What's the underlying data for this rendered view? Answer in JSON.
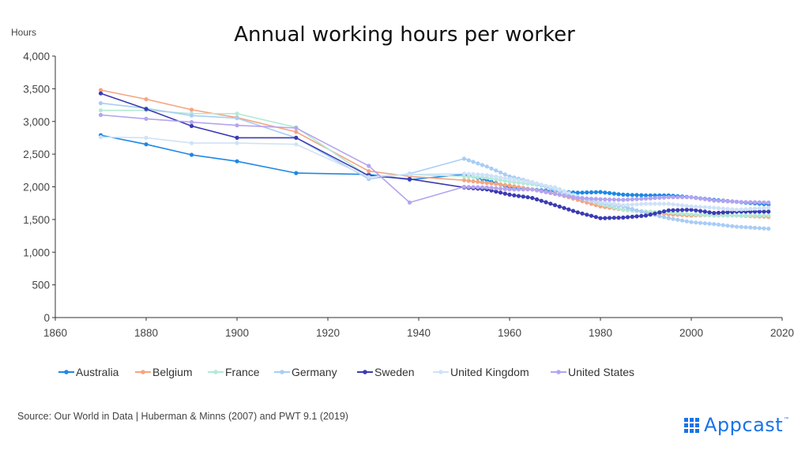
{
  "chart_data": {
    "type": "line",
    "title": "Annual working hours per worker",
    "ylabel": "Hours",
    "xlim": [
      1860,
      2020
    ],
    "ylim": [
      0,
      4000
    ],
    "xticks": [
      "1860",
      "1880",
      "1900",
      "1920",
      "1940",
      "1960",
      "1980",
      "2000",
      "2020"
    ],
    "yticks": [
      "0",
      "500",
      "1,000",
      "1,500",
      "2,000",
      "2,500",
      "3,000",
      "3,500",
      "4,000"
    ],
    "legend_position": "bottom",
    "series": [
      {
        "name": "Australia",
        "color": "#1e88e5",
        "points": [
          [
            1870,
            2790
          ],
          [
            1880,
            2650
          ],
          [
            1890,
            2490
          ],
          [
            1900,
            2390
          ],
          [
            1913,
            2210
          ],
          [
            1929,
            2190
          ],
          [
            1938,
            2110
          ],
          [
            1950,
            2190
          ],
          [
            1955,
            2100
          ],
          [
            1960,
            1990
          ],
          [
            1965,
            1960
          ],
          [
            1970,
            1930
          ],
          [
            1975,
            1910
          ],
          [
            1980,
            1920
          ],
          [
            1985,
            1880
          ],
          [
            1990,
            1870
          ],
          [
            1995,
            1870
          ],
          [
            2000,
            1840
          ],
          [
            2005,
            1800
          ],
          [
            2010,
            1770
          ],
          [
            2017,
            1730
          ]
        ]
      },
      {
        "name": "Belgium",
        "color": "#f4a582",
        "points": [
          [
            1870,
            3480
          ],
          [
            1880,
            3340
          ],
          [
            1890,
            3180
          ],
          [
            1900,
            3060
          ],
          [
            1913,
            2840
          ],
          [
            1929,
            2240
          ],
          [
            1938,
            2160
          ],
          [
            1950,
            2100
          ],
          [
            1955,
            2060
          ],
          [
            1960,
            2020
          ],
          [
            1965,
            1960
          ],
          [
            1970,
            1900
          ],
          [
            1975,
            1800
          ],
          [
            1980,
            1700
          ],
          [
            1985,
            1650
          ],
          [
            1990,
            1620
          ],
          [
            1995,
            1580
          ],
          [
            2000,
            1560
          ],
          [
            2005,
            1570
          ],
          [
            2010,
            1560
          ],
          [
            2017,
            1540
          ]
        ]
      },
      {
        "name": "France",
        "color": "#b2ead6",
        "points": [
          [
            1870,
            3170
          ],
          [
            1880,
            3170
          ],
          [
            1890,
            3120
          ],
          [
            1900,
            3120
          ],
          [
            1913,
            2910
          ],
          [
            1929,
            2160
          ],
          [
            1938,
            2190
          ],
          [
            1950,
            2160
          ],
          [
            1955,
            2140
          ],
          [
            1960,
            2080
          ],
          [
            1965,
            2040
          ],
          [
            1970,
            1990
          ],
          [
            1975,
            1850
          ],
          [
            1980,
            1740
          ],
          [
            1985,
            1650
          ],
          [
            1990,
            1620
          ],
          [
            1995,
            1610
          ],
          [
            2000,
            1580
          ],
          [
            2005,
            1560
          ],
          [
            2010,
            1560
          ],
          [
            2017,
            1560
          ]
        ]
      },
      {
        "name": "Germany",
        "color": "#a9cdf5",
        "points": [
          [
            1870,
            3280
          ],
          [
            1880,
            3200
          ],
          [
            1890,
            3090
          ],
          [
            1900,
            3050
          ],
          [
            1913,
            2750
          ],
          [
            1929,
            2120
          ],
          [
            1938,
            2200
          ],
          [
            1950,
            2430
          ],
          [
            1955,
            2310
          ],
          [
            1960,
            2160
          ],
          [
            1965,
            2070
          ],
          [
            1970,
            1950
          ],
          [
            1975,
            1830
          ],
          [
            1980,
            1760
          ],
          [
            1985,
            1700
          ],
          [
            1990,
            1600
          ],
          [
            1995,
            1520
          ],
          [
            2000,
            1460
          ],
          [
            2005,
            1430
          ],
          [
            2010,
            1390
          ],
          [
            2017,
            1360
          ]
        ]
      },
      {
        "name": "Sweden",
        "color": "#3b3bb3",
        "points": [
          [
            1870,
            3430
          ],
          [
            1880,
            3190
          ],
          [
            1890,
            2930
          ],
          [
            1900,
            2750
          ],
          [
            1913,
            2750
          ],
          [
            1929,
            2170
          ],
          [
            1938,
            2120
          ],
          [
            1950,
            1990
          ],
          [
            1955,
            1960
          ],
          [
            1960,
            1880
          ],
          [
            1965,
            1830
          ],
          [
            1970,
            1720
          ],
          [
            1975,
            1610
          ],
          [
            1980,
            1520
          ],
          [
            1985,
            1530
          ],
          [
            1990,
            1560
          ],
          [
            1995,
            1640
          ],
          [
            2000,
            1650
          ],
          [
            2005,
            1600
          ],
          [
            2010,
            1620
          ],
          [
            2017,
            1620
          ]
        ]
      },
      {
        "name": "United Kingdom",
        "color": "#cfe2f7",
        "points": [
          [
            1870,
            2760
          ],
          [
            1880,
            2750
          ],
          [
            1890,
            2670
          ],
          [
            1900,
            2670
          ],
          [
            1913,
            2650
          ],
          [
            1929,
            2150
          ],
          [
            1938,
            2190
          ],
          [
            1950,
            2200
          ],
          [
            1955,
            2180
          ],
          [
            1960,
            2120
          ],
          [
            1965,
            2070
          ],
          [
            1970,
            1980
          ],
          [
            1975,
            1850
          ],
          [
            1980,
            1770
          ],
          [
            1985,
            1720
          ],
          [
            1990,
            1740
          ],
          [
            1995,
            1740
          ],
          [
            2000,
            1700
          ],
          [
            2005,
            1680
          ],
          [
            2010,
            1650
          ],
          [
            2017,
            1680
          ]
        ]
      },
      {
        "name": "United States",
        "color": "#b4a4f0",
        "points": [
          [
            1870,
            3100
          ],
          [
            1880,
            3040
          ],
          [
            1890,
            2990
          ],
          [
            1900,
            2940
          ],
          [
            1913,
            2900
          ],
          [
            1929,
            2320
          ],
          [
            1938,
            1760
          ],
          [
            1950,
            2000
          ],
          [
            1955,
            1990
          ],
          [
            1960,
            1960
          ],
          [
            1965,
            1960
          ],
          [
            1970,
            1890
          ],
          [
            1975,
            1830
          ],
          [
            1980,
            1810
          ],
          [
            1985,
            1800
          ],
          [
            1990,
            1820
          ],
          [
            1995,
            1840
          ],
          [
            2000,
            1840
          ],
          [
            2005,
            1790
          ],
          [
            2010,
            1770
          ],
          [
            2017,
            1760
          ]
        ]
      }
    ]
  },
  "source_text": "Source: Our World in Data  |  Huberman & Minns (2007) and PWT 9.1 (2019)",
  "logo": {
    "text": "Appcast",
    "tm": "™"
  }
}
